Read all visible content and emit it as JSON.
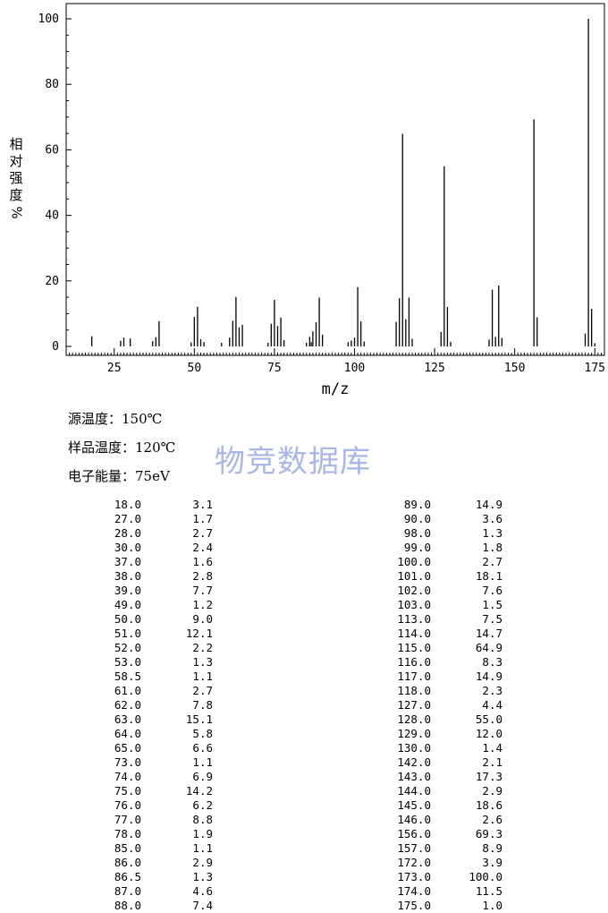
{
  "chart_data": {
    "type": "bar",
    "title": "",
    "xlabel": "m/z",
    "ylabel": [
      "相",
      "对",
      "强",
      "度",
      "%"
    ],
    "xlim": [
      10,
      178
    ],
    "ylim": [
      0,
      105
    ],
    "xticks": [
      25,
      50,
      75,
      100,
      125,
      150,
      175
    ],
    "yticks": [
      0,
      20,
      40,
      60,
      80,
      100
    ],
    "grid": false,
    "series": [
      {
        "x": [
          18.0,
          27.0,
          28.0,
          30.0,
          37.0,
          38.0,
          39.0,
          49.0,
          50.0,
          51.0,
          52.0,
          53.0,
          58.5,
          61.0,
          62.0,
          63.0,
          64.0,
          65.0,
          73.0,
          74.0,
          75.0,
          76.0,
          77.0,
          78.0,
          85.0,
          86.0,
          86.5,
          87.0,
          88.0,
          89.0,
          90.0,
          98.0,
          99.0,
          100.0,
          101.0,
          102.0,
          103.0,
          113.0,
          114.0,
          115.0,
          116.0,
          117.0,
          118.0,
          127.0,
          128.0,
          129.0,
          130.0,
          142.0,
          143.0,
          144.0,
          145.0,
          146.0,
          156.0,
          157.0,
          172.0,
          173.0,
          174.0,
          175.0
        ],
        "values": [
          3.1,
          1.7,
          2.7,
          2.4,
          1.6,
          2.8,
          7.7,
          1.2,
          9.0,
          12.1,
          2.2,
          1.3,
          1.1,
          2.7,
          7.8,
          15.1,
          5.8,
          6.6,
          1.1,
          6.9,
          14.2,
          6.2,
          8.8,
          1.9,
          1.1,
          2.9,
          1.3,
          4.6,
          7.4,
          14.9,
          3.6,
          1.3,
          1.8,
          2.7,
          18.1,
          7.6,
          1.5,
          7.5,
          14.7,
          64.9,
          8.3,
          14.9,
          2.3,
          4.4,
          55.0,
          12.0,
          1.4,
          2.1,
          17.3,
          2.9,
          18.6,
          2.6,
          69.3,
          8.9,
          3.9,
          100.0,
          11.5,
          1.0
        ]
      }
    ]
  },
  "conditions": [
    {
      "label": "源温度：",
      "value": "150℃"
    },
    {
      "label": "样品温度：",
      "value": "120℃"
    },
    {
      "label": "电子能量：",
      "value": "75eV"
    }
  ],
  "watermark": "物竞数据库",
  "peak_table": {
    "left": [
      [
        "18.0",
        "3.1"
      ],
      [
        "27.0",
        "1.7"
      ],
      [
        "28.0",
        "2.7"
      ],
      [
        "30.0",
        "2.4"
      ],
      [
        "37.0",
        "1.6"
      ],
      [
        "38.0",
        "2.8"
      ],
      [
        "39.0",
        "7.7"
      ],
      [
        "49.0",
        "1.2"
      ],
      [
        "50.0",
        "9.0"
      ],
      [
        "51.0",
        "12.1"
      ],
      [
        "52.0",
        "2.2"
      ],
      [
        "53.0",
        "1.3"
      ],
      [
        "58.5",
        "1.1"
      ],
      [
        "61.0",
        "2.7"
      ],
      [
        "62.0",
        "7.8"
      ],
      [
        "63.0",
        "15.1"
      ],
      [
        "64.0",
        "5.8"
      ],
      [
        "65.0",
        "6.6"
      ],
      [
        "73.0",
        "1.1"
      ],
      [
        "74.0",
        "6.9"
      ],
      [
        "75.0",
        "14.2"
      ],
      [
        "76.0",
        "6.2"
      ],
      [
        "77.0",
        "8.8"
      ],
      [
        "78.0",
        "1.9"
      ],
      [
        "85.0",
        "1.1"
      ],
      [
        "86.0",
        "2.9"
      ],
      [
        "86.5",
        "1.3"
      ],
      [
        "87.0",
        "4.6"
      ],
      [
        "88.0",
        "7.4"
      ]
    ],
    "right": [
      [
        "89.0",
        "14.9"
      ],
      [
        "90.0",
        "3.6"
      ],
      [
        "98.0",
        "1.3"
      ],
      [
        "99.0",
        "1.8"
      ],
      [
        "100.0",
        "2.7"
      ],
      [
        "101.0",
        "18.1"
      ],
      [
        "102.0",
        "7.6"
      ],
      [
        "103.0",
        "1.5"
      ],
      [
        "113.0",
        "7.5"
      ],
      [
        "114.0",
        "14.7"
      ],
      [
        "115.0",
        "64.9"
      ],
      [
        "116.0",
        "8.3"
      ],
      [
        "117.0",
        "14.9"
      ],
      [
        "118.0",
        "2.3"
      ],
      [
        "127.0",
        "4.4"
      ],
      [
        "128.0",
        "55.0"
      ],
      [
        "129.0",
        "12.0"
      ],
      [
        "130.0",
        "1.4"
      ],
      [
        "142.0",
        "2.1"
      ],
      [
        "143.0",
        "17.3"
      ],
      [
        "144.0",
        "2.9"
      ],
      [
        "145.0",
        "18.6"
      ],
      [
        "146.0",
        "2.6"
      ],
      [
        "156.0",
        "69.3"
      ],
      [
        "157.0",
        "8.9"
      ],
      [
        "172.0",
        "3.9"
      ],
      [
        "173.0",
        "100.0"
      ],
      [
        "174.0",
        "11.5"
      ],
      [
        "175.0",
        "1.0"
      ]
    ]
  }
}
